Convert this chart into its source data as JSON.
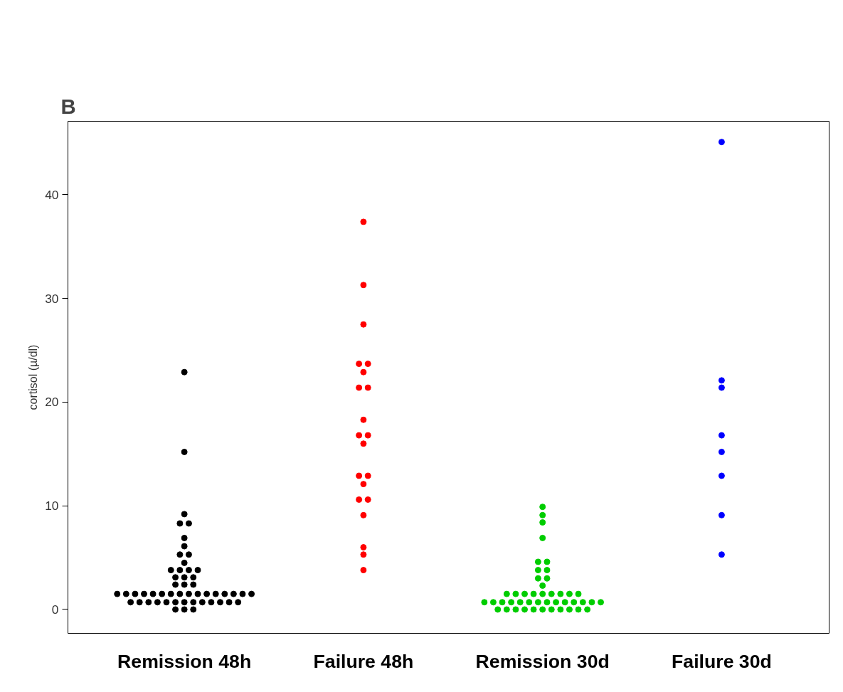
{
  "chart_data": {
    "type": "scatter",
    "title": "B",
    "ylabel": "cortisol (µ/dl)",
    "categories": [
      "Remission 48h",
      "Failure 48h",
      "Remission 30d",
      "Failure 30d"
    ],
    "ylim": [
      -2.3,
      47.1
    ],
    "yticks": [
      0,
      10,
      20,
      30,
      40
    ],
    "grid": false,
    "marker": "circle",
    "series": [
      {
        "color": "#000000",
        "x": [
          "Remission 48h",
          "Remission 48h",
          "Remission 48h",
          "Remission 48h",
          "Remission 48h",
          "Remission 48h",
          "Remission 48h",
          "Remission 48h",
          "Remission 48h",
          "Remission 48h",
          "Remission 48h",
          "Remission 48h",
          "Remission 48h",
          "Remission 48h",
          "Remission 48h",
          "Remission 48h",
          "Remission 48h",
          "Remission 48h",
          "Remission 48h",
          "Remission 48h",
          "Remission 48h",
          "Remission 48h",
          "Remission 48h",
          "Remission 48h",
          "Remission 48h",
          "Remission 48h",
          "Remission 48h",
          "Remission 48h",
          "Remission 48h",
          "Remission 48h",
          "Remission 48h",
          "Remission 48h",
          "Remission 48h",
          "Remission 48h",
          "Remission 48h",
          "Remission 48h",
          "Remission 48h",
          "Remission 48h",
          "Remission 48h",
          "Remission 48h",
          "Remission 48h",
          "Remission 48h",
          "Remission 48h",
          "Remission 48h",
          "Remission 48h",
          "Remission 48h",
          "Remission 48h",
          "Remission 48h",
          "Remission 48h",
          "Remission 48h",
          "Remission 48h",
          "Remission 48h"
        ],
        "values": [
          22.9,
          15.2,
          9.2,
          8.3,
          8.3,
          6.9,
          6.1,
          5.3,
          5.3,
          4.5,
          3.8,
          3.8,
          3.8,
          3.8,
          3.1,
          3.1,
          3.1,
          2.4,
          2.4,
          2.4,
          1.5,
          1.5,
          1.5,
          1.5,
          1.5,
          1.5,
          1.5,
          1.5,
          1.5,
          1.5,
          1.5,
          1.5,
          1.5,
          1.5,
          1.5,
          1.5,
          0.7,
          0.7,
          0.7,
          0.7,
          0.7,
          0.7,
          0.7,
          0.7,
          0.7,
          0.7,
          0.7,
          0.7,
          0.7,
          0,
          0,
          0
        ]
      },
      {
        "color": "#ff0000",
        "x": [
          "Failure 48h",
          "Failure 48h",
          "Failure 48h",
          "Failure 48h",
          "Failure 48h",
          "Failure 48h",
          "Failure 48h",
          "Failure 48h",
          "Failure 48h",
          "Failure 48h",
          "Failure 48h",
          "Failure 48h",
          "Failure 48h",
          "Failure 48h",
          "Failure 48h",
          "Failure 48h",
          "Failure 48h",
          "Failure 48h",
          "Failure 48h",
          "Failure 48h",
          "Failure 48h"
        ],
        "values": [
          37.4,
          31.3,
          27.5,
          23.7,
          23.7,
          22.9,
          21.4,
          21.4,
          18.3,
          16.8,
          16.8,
          16.0,
          12.9,
          12.9,
          12.1,
          10.6,
          10.6,
          9.1,
          6.0,
          5.3,
          3.8
        ]
      },
      {
        "color": "#00cd00",
        "x": [
          "Remission 30d",
          "Remission 30d",
          "Remission 30d",
          "Remission 30d",
          "Remission 30d",
          "Remission 30d",
          "Remission 30d",
          "Remission 30d",
          "Remission 30d",
          "Remission 30d",
          "Remission 30d",
          "Remission 30d",
          "Remission 30d",
          "Remission 30d",
          "Remission 30d",
          "Remission 30d",
          "Remission 30d",
          "Remission 30d",
          "Remission 30d",
          "Remission 30d",
          "Remission 30d",
          "Remission 30d",
          "Remission 30d",
          "Remission 30d",
          "Remission 30d",
          "Remission 30d",
          "Remission 30d",
          "Remission 30d",
          "Remission 30d",
          "Remission 30d",
          "Remission 30d",
          "Remission 30d",
          "Remission 30d",
          "Remission 30d",
          "Remission 30d",
          "Remission 30d",
          "Remission 30d",
          "Remission 30d",
          "Remission 30d",
          "Remission 30d",
          "Remission 30d",
          "Remission 30d",
          "Remission 30d",
          "Remission 30d",
          "Remission 30d"
        ],
        "values": [
          9.9,
          9.1,
          8.4,
          6.9,
          4.6,
          4.6,
          3.8,
          3.8,
          3.0,
          3.0,
          2.3,
          1.5,
          1.5,
          1.5,
          1.5,
          1.5,
          1.5,
          1.5,
          1.5,
          1.5,
          0.7,
          0.7,
          0.7,
          0.7,
          0.7,
          0.7,
          0.7,
          0.7,
          0.7,
          0.7,
          0.7,
          0.7,
          0.7,
          0.7,
          0,
          0,
          0,
          0,
          0,
          0,
          0,
          0,
          0,
          0,
          0
        ]
      },
      {
        "color": "#0000ff",
        "x": [
          "Failure 30d",
          "Failure 30d",
          "Failure 30d",
          "Failure 30d",
          "Failure 30d",
          "Failure 30d",
          "Failure 30d",
          "Failure 30d"
        ],
        "values": [
          45.1,
          22.1,
          21.4,
          16.8,
          15.2,
          12.9,
          9.1,
          5.3
        ]
      }
    ]
  }
}
